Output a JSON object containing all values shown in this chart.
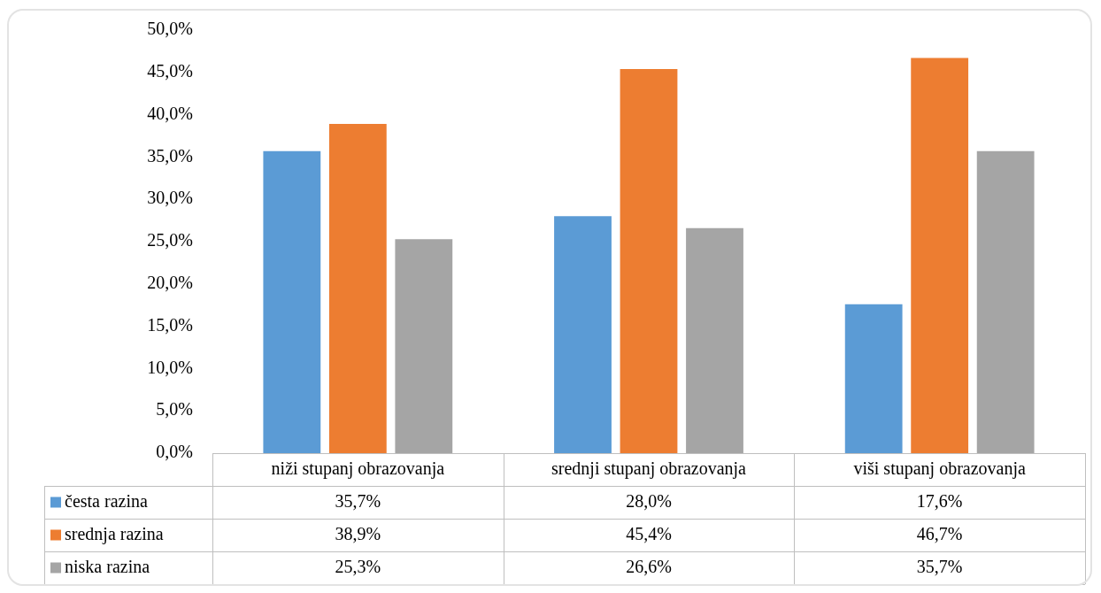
{
  "chart_data": {
    "type": "bar",
    "categories": [
      "niži stupanj obrazovanja",
      "srednji stupanj obrazovanja",
      "viši stupanj obrazovanja"
    ],
    "series": [
      {
        "name": "česta razina",
        "color": "#5b9bd5",
        "values": [
          35.7,
          28.0,
          17.6
        ],
        "value_labels": [
          "35,7%",
          "28,0%",
          "17,6%"
        ]
      },
      {
        "name": "srednja razina",
        "color": "#ed7d31",
        "values": [
          38.9,
          45.4,
          46.7
        ],
        "value_labels": [
          "38,9%",
          "45,4%",
          "46,7%"
        ]
      },
      {
        "name": "niska razina",
        "color": "#a5a5a5",
        "values": [
          25.3,
          26.6,
          35.7
        ],
        "value_labels": [
          "25,3%",
          "26,6%",
          "35,7%"
        ]
      }
    ],
    "ylim": [
      0,
      50
    ],
    "yticks": [
      {
        "value": 0,
        "label": "0,0%"
      },
      {
        "value": 5,
        "label": "5,0%"
      },
      {
        "value": 10,
        "label": "10,0%"
      },
      {
        "value": 15,
        "label": "15,0%"
      },
      {
        "value": 20,
        "label": "20,0%"
      },
      {
        "value": 25,
        "label": "25,0%"
      },
      {
        "value": 30,
        "label": "30,0%"
      },
      {
        "value": 35,
        "label": "35,0%"
      },
      {
        "value": 40,
        "label": "40,0%"
      },
      {
        "value": 45,
        "label": "45,0%"
      },
      {
        "value": 50,
        "label": "50,0%"
      }
    ],
    "grid": false,
    "legend": "bottom"
  }
}
